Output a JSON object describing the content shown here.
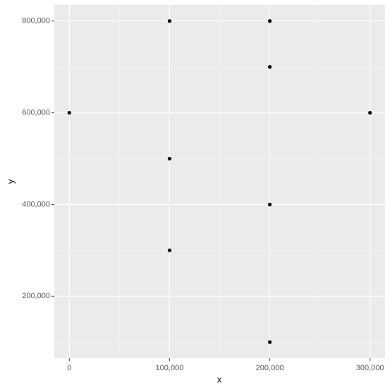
{
  "chart_data": {
    "type": "scatter",
    "xlabel": "x",
    "ylabel": "y",
    "x": [
      0,
      100000,
      100000,
      100000,
      200000,
      200000,
      200000,
      200000,
      300000
    ],
    "y": [
      600000,
      800000,
      500000,
      300000,
      800000,
      700000,
      400000,
      100000,
      600000
    ],
    "color": "#000000",
    "xlim": [
      -15000,
      315000
    ],
    "xticks": [
      {
        "value": 0,
        "label": "0"
      },
      {
        "value": 100000,
        "label": "100,000"
      },
      {
        "value": 200000,
        "label": "200,000"
      },
      {
        "value": 300000,
        "label": "300,000"
      }
    ],
    "xminorticks": [
      50000,
      150000,
      250000
    ],
    "ylim": [
      65000,
      835000
    ],
    "yticks": [
      {
        "value": 200000,
        "label": "200,000"
      },
      {
        "value": 400000,
        "label": "400,000"
      },
      {
        "value": 600000,
        "label": "600,000"
      },
      {
        "value": 800000,
        "label": "800,000"
      }
    ],
    "yminorticks": [
      100000,
      300000,
      500000,
      700000
    ],
    "grid": true
  }
}
